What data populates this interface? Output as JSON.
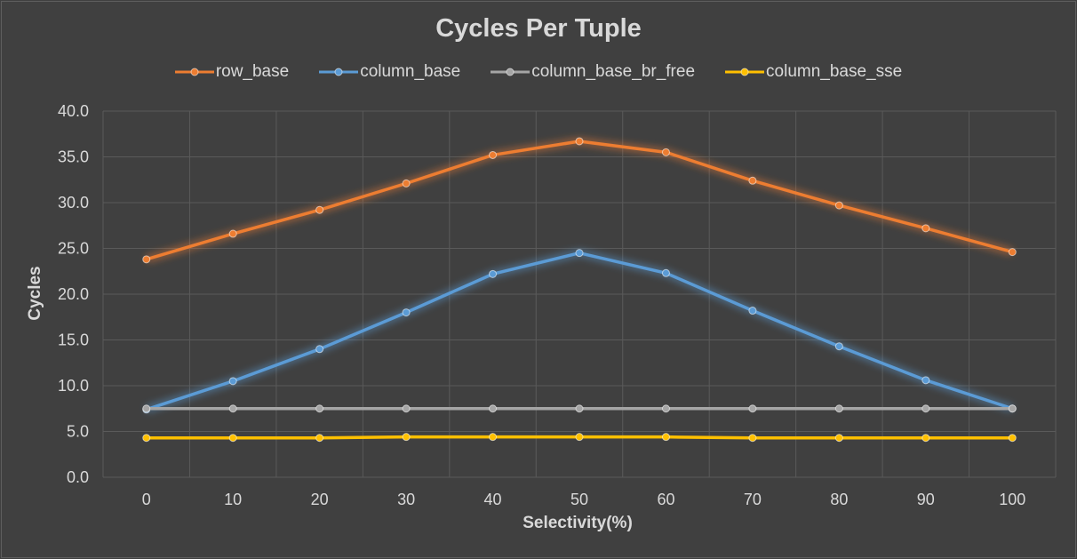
{
  "chart_data": {
    "type": "line",
    "title": "Cycles Per Tuple",
    "xlabel": "Selectivity(%)",
    "ylabel": "Cycles",
    "x": [
      0,
      10,
      20,
      30,
      40,
      50,
      60,
      70,
      80,
      90,
      100
    ],
    "ylim": [
      0,
      40
    ],
    "yticks": [
      "0.0",
      "5.0",
      "10.0",
      "15.0",
      "20.0",
      "25.0",
      "30.0",
      "35.0",
      "40.0"
    ],
    "grid": true,
    "legend_position": "top",
    "series": [
      {
        "name": "row_base",
        "color": "#ed7d31",
        "values": [
          23.8,
          26.6,
          29.2,
          32.1,
          35.2,
          36.7,
          35.5,
          32.4,
          29.7,
          27.2,
          24.6
        ]
      },
      {
        "name": "column_base",
        "color": "#5b9bd5",
        "values": [
          7.4,
          10.5,
          14.0,
          18.0,
          22.2,
          24.5,
          22.3,
          18.2,
          14.3,
          10.6,
          7.5
        ]
      },
      {
        "name": "column_base_br_free",
        "color": "#a5a5a5",
        "values": [
          7.5,
          7.5,
          7.5,
          7.5,
          7.5,
          7.5,
          7.5,
          7.5,
          7.5,
          7.5,
          7.5
        ]
      },
      {
        "name": "column_base_sse",
        "color": "#ffc000",
        "values": [
          4.3,
          4.3,
          4.3,
          4.4,
          4.4,
          4.4,
          4.4,
          4.3,
          4.3,
          4.3,
          4.3
        ]
      }
    ]
  }
}
